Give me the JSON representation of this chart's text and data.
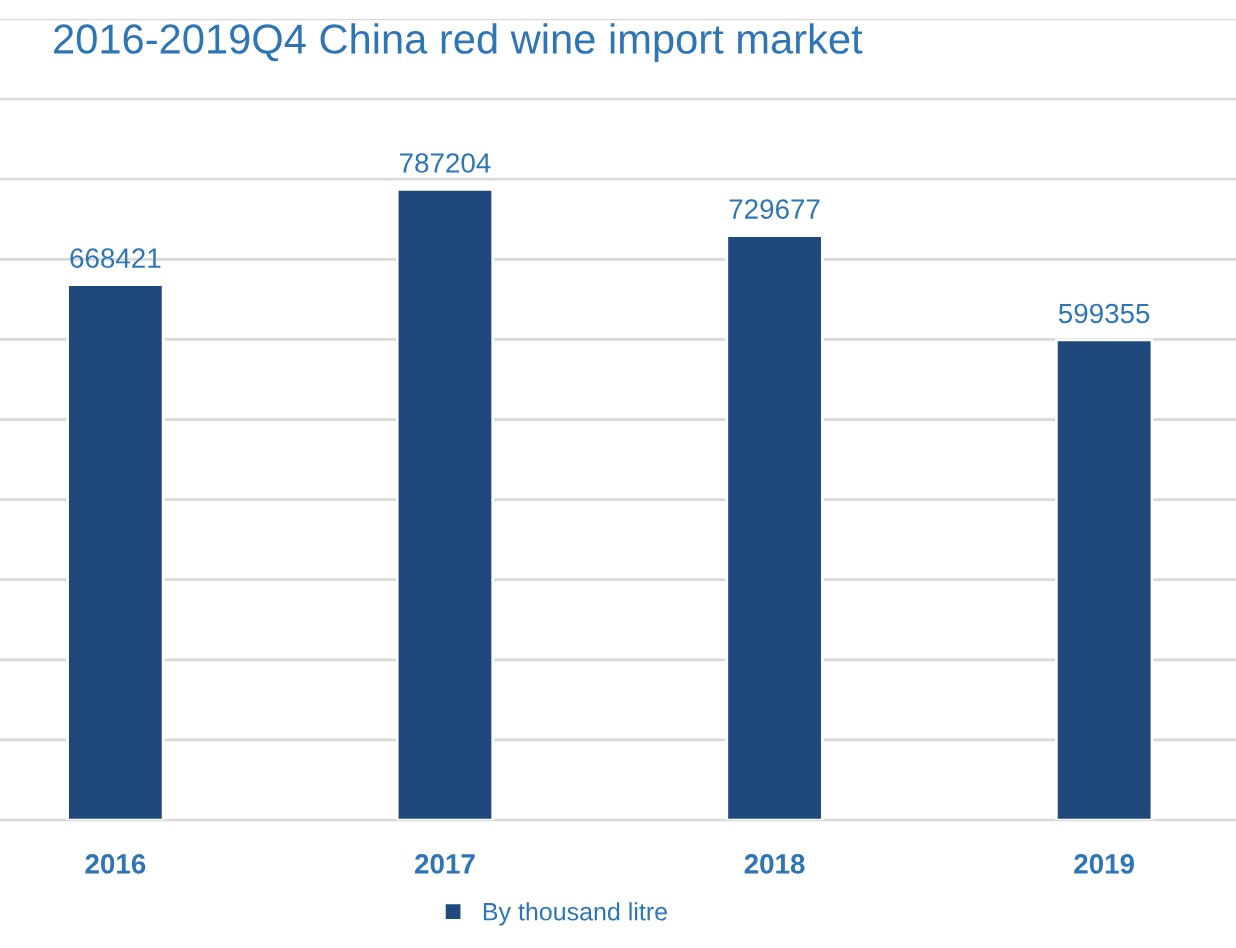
{
  "chart_data": {
    "type": "bar",
    "title": "2016-2019Q4 China red wine import market",
    "categories": [
      "2016",
      "2017",
      "2018",
      "2019"
    ],
    "series": [
      {
        "name": "By thousand litre",
        "color": "#1f497d",
        "values": [
          668421,
          787204,
          729677,
          599355
        ]
      }
    ],
    "data_labels": true,
    "ylim": [
      0,
      1000000
    ],
    "yticks": [
      {
        "value": 0,
        "label": null
      },
      {
        "value": 100000,
        "label": null
      },
      {
        "value": 200000,
        "label": null
      },
      {
        "value": 300000,
        "label": null
      },
      {
        "value": 400000,
        "label": null
      },
      {
        "value": 500000,
        "label": null
      },
      {
        "value": 600000,
        "label": null
      },
      {
        "value": 700000,
        "label": null
      },
      {
        "value": 800000,
        "label": null
      },
      {
        "value": 900000,
        "label": null
      },
      {
        "value": 1000000,
        "label": null
      }
    ],
    "tick_labels": "x",
    "grid": "y",
    "legend": "bottom"
  }
}
